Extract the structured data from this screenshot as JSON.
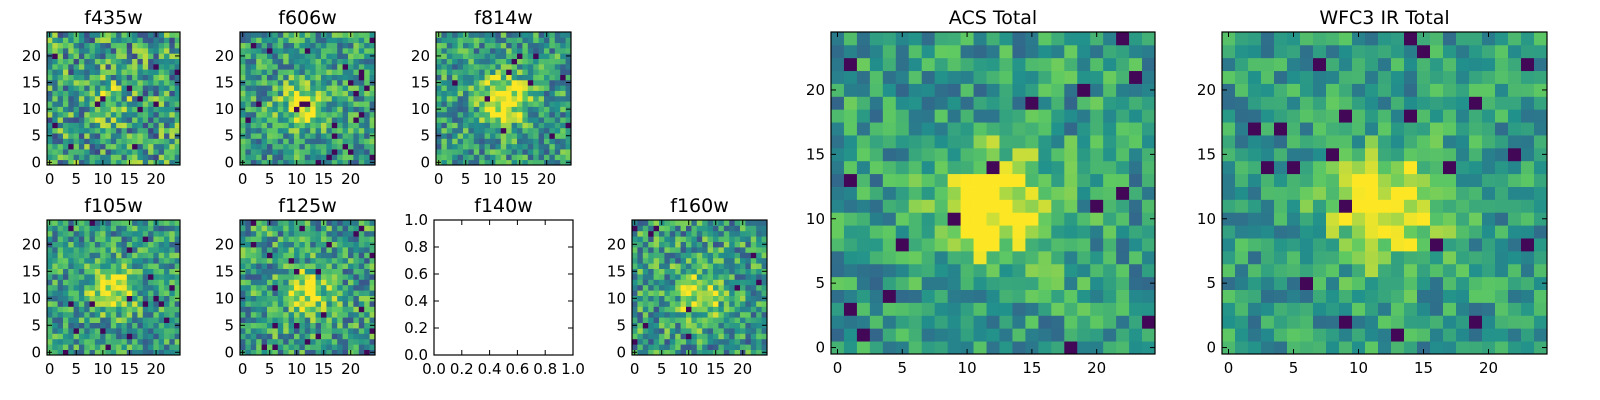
{
  "colormap": [
    "#440154",
    "#3b528b",
    "#21918c",
    "#5ec962",
    "#fde725"
  ],
  "chart_data": [
    {
      "type": "heatmap",
      "title": "f435w",
      "grid_size": 25,
      "xlim": [
        -0.5,
        24.5
      ],
      "ylim": [
        -0.5,
        24.5
      ],
      "xticks": [
        0,
        5,
        10,
        15,
        20
      ],
      "yticks": [
        0,
        5,
        10,
        15,
        20
      ],
      "blob": [
        11,
        11
      ],
      "blob_strength": 0.25,
      "noise": 0.7,
      "seed": 11
    },
    {
      "type": "heatmap",
      "title": "f606w",
      "grid_size": 25,
      "xlim": [
        -0.5,
        24.5
      ],
      "ylim": [
        -0.5,
        24.5
      ],
      "xticks": [
        0,
        5,
        10,
        15,
        20
      ],
      "yticks": [
        0,
        5,
        10,
        15,
        20
      ],
      "blob": [
        11,
        11
      ],
      "blob_strength": 0.35,
      "noise": 0.55,
      "seed": 23
    },
    {
      "type": "heatmap",
      "title": "f814w",
      "grid_size": 25,
      "xlim": [
        -0.5,
        24.5
      ],
      "ylim": [
        -0.5,
        24.5
      ],
      "xticks": [
        0,
        5,
        10,
        15,
        20
      ],
      "yticks": [
        0,
        5,
        10,
        15,
        20
      ],
      "blob": [
        12,
        12
      ],
      "blob_strength": 0.55,
      "noise": 0.55,
      "seed": 37
    },
    {
      "type": "heatmap",
      "title": "f105w",
      "grid_size": 25,
      "xlim": [
        -0.5,
        24.5
      ],
      "ylim": [
        -0.5,
        24.5
      ],
      "xticks": [
        0,
        5,
        10,
        15,
        20
      ],
      "yticks": [
        0,
        5,
        10,
        15,
        20
      ],
      "blob": [
        12,
        12
      ],
      "blob_strength": 0.45,
      "noise": 0.55,
      "seed": 41
    },
    {
      "type": "heatmap",
      "title": "f125w",
      "grid_size": 25,
      "xlim": [
        -0.5,
        24.5
      ],
      "ylim": [
        -0.5,
        24.5
      ],
      "xticks": [
        0,
        5,
        10,
        15,
        20
      ],
      "yticks": [
        0,
        5,
        10,
        15,
        20
      ],
      "blob": [
        12,
        11
      ],
      "blob_strength": 0.4,
      "noise": 0.6,
      "seed": 53
    },
    {
      "type": "empty",
      "title": "f140w",
      "xlim": [
        0,
        1
      ],
      "ylim": [
        0,
        1
      ],
      "xticks": [
        0.0,
        0.2,
        0.4,
        0.6,
        0.8,
        1.0
      ],
      "yticks": [
        0.0,
        0.2,
        0.4,
        0.6,
        0.8,
        1.0
      ],
      "xtick_labels": [
        "0.0",
        "0.2",
        "0.4",
        "0.6",
        "0.8",
        "1.0"
      ],
      "ytick_labels": [
        "0.0",
        "0.2",
        "0.4",
        "0.6",
        "0.8",
        "1.0"
      ]
    },
    {
      "type": "heatmap",
      "title": "f160w",
      "grid_size": 25,
      "xlim": [
        -0.5,
        24.5
      ],
      "ylim": [
        -0.5,
        24.5
      ],
      "xticks": [
        0,
        5,
        10,
        15,
        20
      ],
      "yticks": [
        0,
        5,
        10,
        15,
        20
      ],
      "blob": [
        12,
        11
      ],
      "blob_strength": 0.4,
      "noise": 0.6,
      "seed": 67
    },
    {
      "type": "heatmap",
      "title": "ACS Total",
      "grid_size": 25,
      "xlim": [
        -0.5,
        24.5
      ],
      "ylim": [
        -0.5,
        24.5
      ],
      "xticks": [
        0,
        5,
        10,
        15,
        20
      ],
      "yticks": [
        0,
        5,
        10,
        15,
        20
      ],
      "blob": [
        12,
        11
      ],
      "blob_strength": 0.6,
      "noise": 0.45,
      "seed": 71
    },
    {
      "type": "heatmap",
      "title": "WFC3 IR Total",
      "grid_size": 25,
      "xlim": [
        -0.5,
        24.5
      ],
      "ylim": [
        -0.5,
        24.5
      ],
      "xticks": [
        0,
        5,
        10,
        15,
        20
      ],
      "yticks": [
        0,
        5,
        10,
        15,
        20
      ],
      "blob": [
        12,
        11
      ],
      "blob_strength": 0.55,
      "noise": 0.4,
      "seed": 89
    }
  ]
}
